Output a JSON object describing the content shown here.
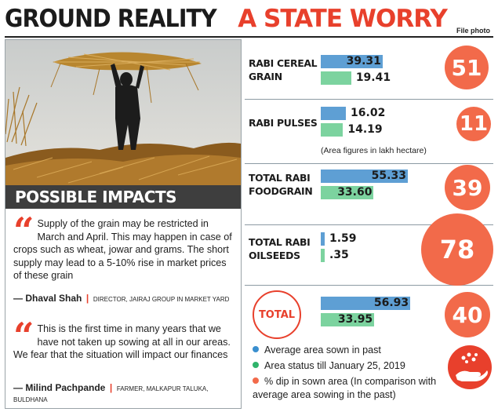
{
  "headline": {
    "part1": "GROUND REALITY",
    "part2": "A STATE WORRY"
  },
  "credit": "File photo",
  "impacts": {
    "heading": "POSSIBLE IMPACTS",
    "quotes": [
      {
        "text": "Supply of the grain may be restricted in March and April. This may happen in case of crops such as wheat, jowar and grams. The short supply may lead to a 5-10% rise in market prices of these grain",
        "name": "— Dhaval Shah",
        "role": "DIRECTOR, JAIRAJ GROUP IN MARKET YARD"
      },
      {
        "text": "This is the first time in many years that we have not taken up sowing at all in our areas. We fear that the situation will impact our finances",
        "name": "— Milind Pachpande",
        "role": "FARMER, MALKAPUR TALUKA, BULDHANA"
      }
    ]
  },
  "chart_data": {
    "type": "bar",
    "orientation": "horizontal",
    "categories": [
      "RABI CEREAL GRAIN",
      "RABI PULSES",
      "TOTAL RABI FOODGRAIN",
      "TOTAL RABI OILSEEDS",
      "TOTAL"
    ],
    "series": [
      {
        "name": "Average area sown in past",
        "values": [
          39.31,
          16.02,
          55.33,
          1.59,
          56.93
        ],
        "labels": [
          "39.31",
          "16.02",
          "55.33",
          "1.59",
          "56.93"
        ],
        "color": "#5e9fd4"
      },
      {
        "name": "Area status till January 25, 2019",
        "values": [
          19.41,
          14.19,
          33.6,
          0.35,
          33.95
        ],
        "labels": [
          "19.41",
          "14.19",
          "33.60",
          ".35",
          "33.95"
        ],
        "color": "#7cd39f"
      }
    ],
    "percent_dip": [
      "51",
      "11",
      "39",
      "78",
      "40"
    ],
    "dip_color": "#f26a4a",
    "unit_note": "(Area figures in lakh hectare)",
    "legend": [
      {
        "label": "Average area sown in past",
        "color": "#3a8fcf"
      },
      {
        "label": "Area status till January 25, 2019",
        "color": "#2fb36b"
      },
      {
        "label": "% dip in sown area (In comparison with average area sowing in the past)",
        "color": "#f26a4a"
      }
    ],
    "total_badge": "TOTAL"
  }
}
